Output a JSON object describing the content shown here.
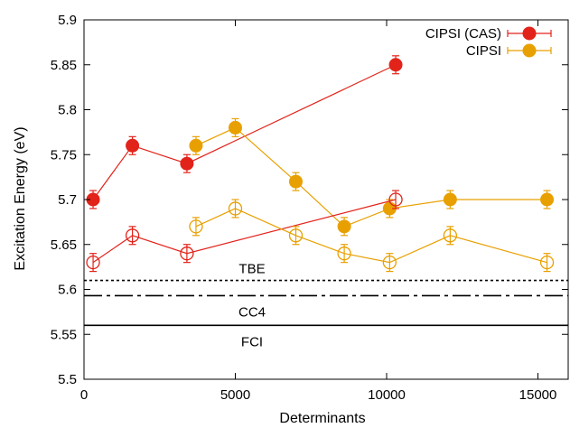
{
  "chart_data": {
    "type": "scatter",
    "xlabel": "Determinants",
    "ylabel": "Excitation Energy (eV)",
    "xlim": [
      0,
      16000
    ],
    "ylim": [
      5.5,
      5.9
    ],
    "xticks": [
      0,
      5000,
      10000,
      15000
    ],
    "yticks": [
      5.5,
      5.55,
      5.6,
      5.65,
      5.7,
      5.75,
      5.8,
      5.85,
      5.9
    ],
    "xtick_labels": [
      "0",
      "5000",
      "10000",
      "15000"
    ],
    "ytick_labels": [
      "5.5",
      "5.55",
      "5.6",
      "5.65",
      "5.7",
      "5.75",
      "5.8",
      "5.85",
      "5.9"
    ],
    "grid": false,
    "legend_position": "top-right",
    "series": [
      {
        "name": "CIPSI (CAS)",
        "color": "#e2231a",
        "marker": "filled-circle",
        "x": [
          300,
          1600,
          3400,
          10300
        ],
        "y": [
          5.7,
          5.76,
          5.74,
          5.85
        ],
        "yerr": 0.01
      },
      {
        "name": "CIPSI",
        "color": "#e8a000",
        "marker": "filled-circle",
        "x": [
          3700,
          5000,
          7000,
          8600,
          10100,
          12100,
          15300
        ],
        "y": [
          5.76,
          5.78,
          5.72,
          5.67,
          5.69,
          5.7,
          5.7
        ],
        "yerr": 0.01
      },
      {
        "name": "",
        "color": "#e2231a",
        "marker": "open-circle",
        "x": [
          300,
          1600,
          3400,
          10300
        ],
        "y": [
          5.63,
          5.66,
          5.64,
          5.7
        ],
        "yerr": 0.01
      },
      {
        "name": "",
        "color": "#e8a000",
        "marker": "open-circle",
        "x": [
          3700,
          5000,
          7000,
          8600,
          10100,
          12100,
          15300
        ],
        "y": [
          5.67,
          5.69,
          5.66,
          5.64,
          5.63,
          5.66,
          5.63
        ],
        "yerr": 0.01
      }
    ],
    "reference_lines": [
      {
        "label": "TBE",
        "y": 5.61,
        "style": "dotted"
      },
      {
        "label": "CC4",
        "y": 5.593,
        "style": "dash-dot"
      },
      {
        "label": "FCI",
        "y": 5.56,
        "style": "solid"
      }
    ]
  }
}
